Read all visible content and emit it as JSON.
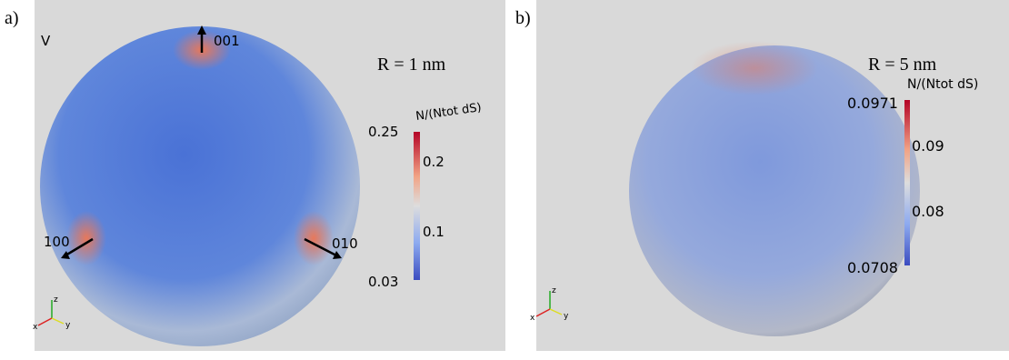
{
  "panels": [
    {
      "label": "a)",
      "corner_text": "V",
      "radius_label": "R = 1 nm",
      "directions": [
        "001",
        "100",
        "010"
      ],
      "colorbar": {
        "title": "N/(Ntot dS)",
        "ticks": [
          "0.25",
          "0.2",
          "0.1",
          "0.03"
        ]
      },
      "axes": [
        "z",
        "x",
        "y"
      ]
    },
    {
      "label": "b)",
      "radius_label": "R = 5 nm",
      "colorbar": {
        "title": "N/(Ntot dS)",
        "ticks": [
          "0.0971",
          "0.09",
          "0.08",
          "0.0708"
        ]
      },
      "axes": [
        "z",
        "x",
        "y"
      ]
    }
  ]
}
